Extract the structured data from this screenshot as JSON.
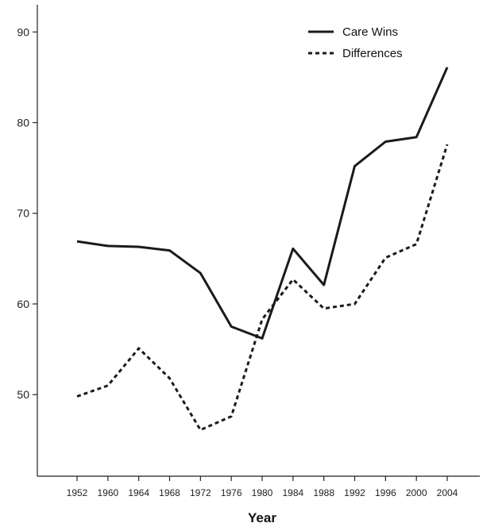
{
  "chart_data": {
    "type": "line",
    "title": "",
    "xlabel": "Year",
    "ylabel": "",
    "x": [
      "1952",
      "1960",
      "1964",
      "1968",
      "1972",
      "1976",
      "1980",
      "1984",
      "1988",
      "1992",
      "1996",
      "2000",
      "2004"
    ],
    "ylim": [
      41,
      93
    ],
    "yticks": [
      50,
      60,
      70,
      80,
      90
    ],
    "grid": false,
    "legend_position": "top-right",
    "series": [
      {
        "name": "Care Wins",
        "style": "solid",
        "color": "#1a1a1a",
        "values": [
          66.9,
          66.4,
          66.3,
          65.9,
          63.4,
          57.5,
          56.2,
          66.1,
          62.1,
          75.2,
          77.9,
          78.4,
          86.1
        ]
      },
      {
        "name": "Differences",
        "style": "dashed",
        "color": "#1a1a1a",
        "values": [
          49.8,
          51.0,
          55.1,
          51.8,
          46.1,
          47.6,
          58.3,
          62.7,
          59.5,
          60.0,
          65.1,
          66.6,
          77.6
        ]
      }
    ]
  }
}
